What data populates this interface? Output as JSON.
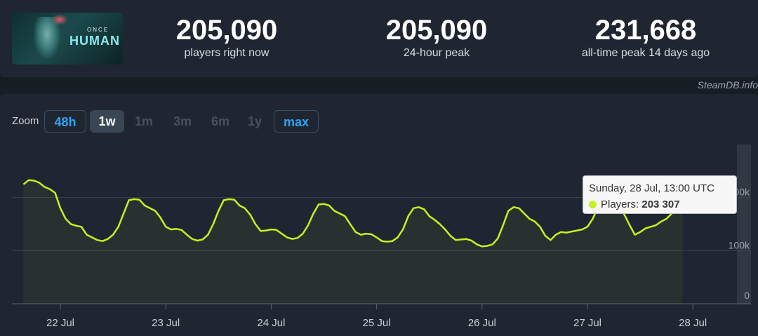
{
  "header": {
    "game_logo_text": [
      "ONCE",
      "HUMAN"
    ],
    "stats": [
      {
        "value": "205,090",
        "label": "players right now"
      },
      {
        "value": "205,090",
        "label": "24-hour peak"
      },
      {
        "value": "231,668",
        "label": "all-time peak 14 days ago"
      }
    ],
    "credit": "SteamDB.info"
  },
  "zoom": {
    "label": "Zoom",
    "buttons": [
      {
        "label": "48h",
        "state": "outline"
      },
      {
        "label": "1w",
        "state": "active"
      },
      {
        "label": "1m",
        "state": "disabled"
      },
      {
        "label": "3m",
        "state": "disabled"
      },
      {
        "label": "6m",
        "state": "disabled"
      },
      {
        "label": "1y",
        "state": "disabled"
      },
      {
        "label": "max",
        "state": "outline"
      }
    ]
  },
  "tooltip": {
    "date": "Sunday, 28 Jul, 13:00 UTC",
    "series_label": "Players:",
    "value": "203 307"
  },
  "chart_data": {
    "type": "line",
    "x_tick_labels": [
      "22 Jul",
      "23 Jul",
      "24 Jul",
      "25 Jul",
      "26 Jul",
      "27 Jul",
      "28 Jul"
    ],
    "y_tick_labels": [
      "0",
      "100k",
      "200k"
    ],
    "ylim": [
      0,
      300000
    ],
    "grid": true,
    "series": [
      {
        "name": "Players",
        "color": "#c4f21e",
        "x_unit": "days since 21 Jul 00:00 UTC",
        "points": [
          [
            0.65,
            225000
          ],
          [
            0.7,
            233000
          ],
          [
            0.75,
            232000
          ],
          [
            0.8,
            228000
          ],
          [
            0.85,
            220000
          ],
          [
            0.9,
            216000
          ],
          [
            0.95,
            209000
          ],
          [
            1.0,
            180000
          ],
          [
            1.05,
            160000
          ],
          [
            1.1,
            150000
          ],
          [
            1.15,
            147000
          ],
          [
            1.2,
            145000
          ],
          [
            1.25,
            130000
          ],
          [
            1.3,
            125000
          ],
          [
            1.35,
            120000
          ],
          [
            1.4,
            118000
          ],
          [
            1.45,
            122000
          ],
          [
            1.5,
            130000
          ],
          [
            1.55,
            145000
          ],
          [
            1.6,
            170000
          ],
          [
            1.65,
            195000
          ],
          [
            1.7,
            197000
          ],
          [
            1.75,
            196000
          ],
          [
            1.8,
            185000
          ],
          [
            1.85,
            180000
          ],
          [
            1.9,
            175000
          ],
          [
            1.95,
            162000
          ],
          [
            2.0,
            145000
          ],
          [
            2.05,
            140000
          ],
          [
            2.1,
            141000
          ],
          [
            2.15,
            139000
          ],
          [
            2.2,
            130000
          ],
          [
            2.25,
            122000
          ],
          [
            2.3,
            119000
          ],
          [
            2.35,
            121000
          ],
          [
            2.4,
            130000
          ],
          [
            2.45,
            150000
          ],
          [
            2.5,
            175000
          ],
          [
            2.55,
            195000
          ],
          [
            2.6,
            197000
          ],
          [
            2.65,
            196000
          ],
          [
            2.7,
            185000
          ],
          [
            2.75,
            180000
          ],
          [
            2.8,
            168000
          ],
          [
            2.85,
            150000
          ],
          [
            2.9,
            137000
          ],
          [
            2.95,
            138000
          ],
          [
            3.0,
            140000
          ],
          [
            3.05,
            139000
          ],
          [
            3.1,
            132000
          ],
          [
            3.15,
            125000
          ],
          [
            3.2,
            122000
          ],
          [
            3.25,
            124000
          ],
          [
            3.3,
            132000
          ],
          [
            3.35,
            148000
          ],
          [
            3.4,
            170000
          ],
          [
            3.45,
            187000
          ],
          [
            3.5,
            188000
          ],
          [
            3.55,
            185000
          ],
          [
            3.6,
            175000
          ],
          [
            3.65,
            170000
          ],
          [
            3.7,
            165000
          ],
          [
            3.75,
            150000
          ],
          [
            3.8,
            135000
          ],
          [
            3.85,
            130000
          ],
          [
            3.9,
            132000
          ],
          [
            3.95,
            131000
          ],
          [
            4.0,
            125000
          ],
          [
            4.05,
            118000
          ],
          [
            4.1,
            117000
          ],
          [
            4.15,
            118000
          ],
          [
            4.2,
            125000
          ],
          [
            4.25,
            140000
          ],
          [
            4.3,
            165000
          ],
          [
            4.35,
            180000
          ],
          [
            4.4,
            182000
          ],
          [
            4.45,
            178000
          ],
          [
            4.5,
            165000
          ],
          [
            4.55,
            158000
          ],
          [
            4.6,
            150000
          ],
          [
            4.65,
            140000
          ],
          [
            4.7,
            128000
          ],
          [
            4.75,
            120000
          ],
          [
            4.8,
            121000
          ],
          [
            4.85,
            122000
          ],
          [
            4.9,
            119000
          ],
          [
            4.95,
            112000
          ],
          [
            5.0,
            108000
          ],
          [
            5.05,
            109000
          ],
          [
            5.1,
            112000
          ],
          [
            5.15,
            123000
          ],
          [
            5.2,
            148000
          ],
          [
            5.25,
            175000
          ],
          [
            5.3,
            182000
          ],
          [
            5.35,
            180000
          ],
          [
            5.4,
            170000
          ],
          [
            5.45,
            160000
          ],
          [
            5.5,
            155000
          ],
          [
            5.55,
            145000
          ],
          [
            5.6,
            128000
          ],
          [
            5.65,
            120000
          ],
          [
            5.7,
            130000
          ],
          [
            5.75,
            135000
          ],
          [
            5.8,
            134000
          ],
          [
            5.85,
            136000
          ],
          [
            5.9,
            138000
          ],
          [
            5.95,
            140000
          ],
          [
            6.0,
            145000
          ],
          [
            6.05,
            160000
          ],
          [
            6.1,
            182000
          ],
          [
            6.15,
            192000
          ],
          [
            6.2,
            193000
          ],
          [
            6.25,
            192000
          ],
          [
            6.3,
            180000
          ],
          [
            6.35,
            168000
          ],
          [
            6.4,
            148000
          ],
          [
            6.45,
            130000
          ],
          [
            6.5,
            135000
          ],
          [
            6.55,
            142000
          ],
          [
            6.6,
            145000
          ],
          [
            6.65,
            148000
          ],
          [
            6.7,
            155000
          ],
          [
            6.75,
            160000
          ],
          [
            6.8,
            170000
          ],
          [
            6.85,
            185000
          ],
          [
            6.87,
            192000
          ],
          [
            6.9,
            203307
          ]
        ]
      }
    ]
  }
}
